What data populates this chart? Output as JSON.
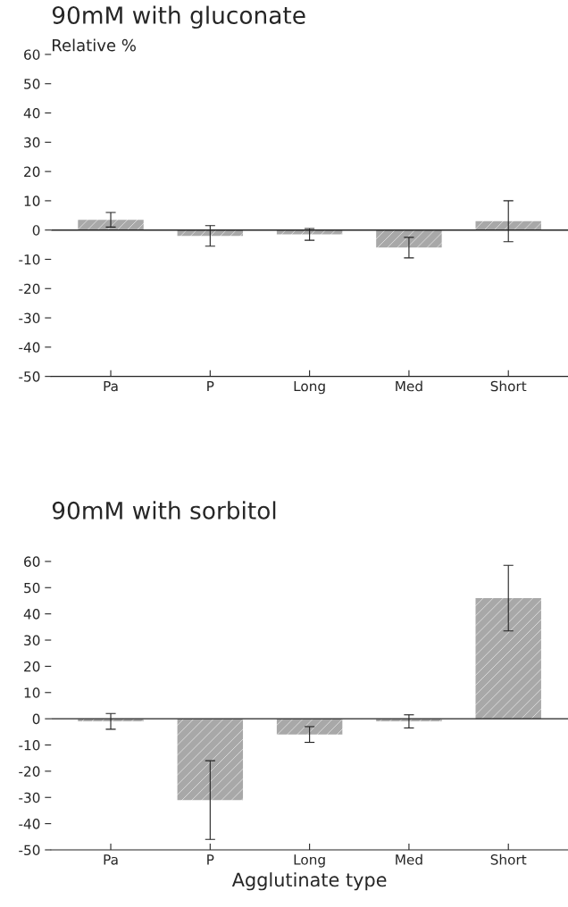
{
  "chart_data": [
    {
      "type": "bar",
      "title": "90mM with gluconate",
      "ylabel": "Relative %",
      "categories": [
        "Pa",
        "P",
        "Long",
        "Med",
        "Short"
      ],
      "values": [
        3.5,
        -2,
        -1.5,
        -6,
        3
      ],
      "errors": [
        2.5,
        3.5,
        2,
        3.5,
        7
      ],
      "color": "#a8a8a8",
      "ylim": [
        -50,
        60
      ],
      "yticks": [
        -50,
        -40,
        -30,
        -20,
        -10,
        0,
        10,
        20,
        30,
        40,
        50,
        60
      ],
      "grid": false,
      "legend": false,
      "ref_lines": [
        {
          "axis": "y",
          "value": 0
        }
      ]
    },
    {
      "type": "bar",
      "title": "90mM with sorbitol",
      "xlabel": "Agglutinate type",
      "categories": [
        "Pa",
        "P",
        "Long",
        "Med",
        "Short"
      ],
      "values": [
        -1,
        -31,
        -6,
        -1,
        46
      ],
      "errors": [
        3,
        15,
        3,
        2.5,
        12.5
      ],
      "color": "#a8a8a8",
      "ylim": [
        -50,
        60
      ],
      "yticks": [
        -50,
        -40,
        -30,
        -20,
        -10,
        0,
        10,
        20,
        30,
        40,
        50,
        60
      ],
      "grid": false,
      "legend": false,
      "ref_lines": [
        {
          "axis": "y",
          "value": 0
        }
      ]
    }
  ]
}
